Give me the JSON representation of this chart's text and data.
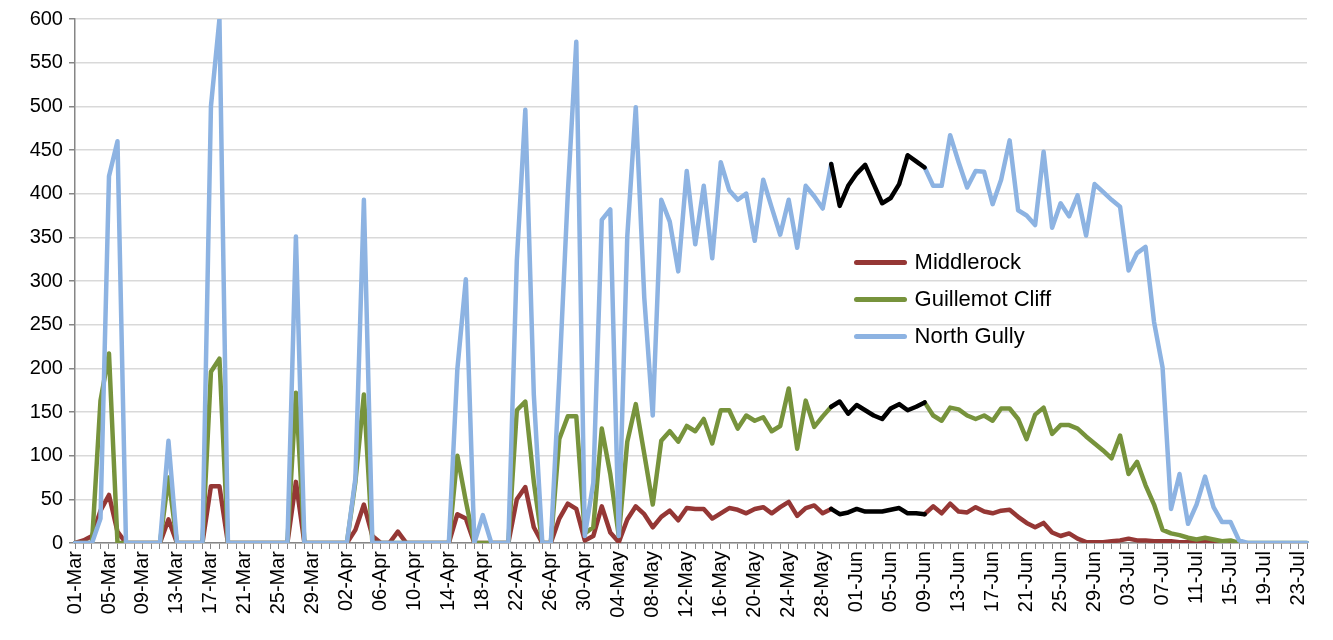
{
  "chart_data": {
    "type": "line",
    "categories": [
      "01-Mar",
      null,
      null,
      null,
      "05-Mar",
      null,
      null,
      null,
      "09-Mar",
      null,
      null,
      null,
      "13-Mar",
      null,
      null,
      null,
      "17-Mar",
      null,
      null,
      null,
      "21-Mar",
      null,
      null,
      null,
      "25-Mar",
      null,
      null,
      null,
      "29-Mar",
      null,
      null,
      null,
      "02-Apr",
      null,
      null,
      null,
      "06-Apr",
      null,
      null,
      null,
      "10-Apr",
      null,
      null,
      null,
      "14-Apr",
      null,
      null,
      null,
      "18-Apr",
      null,
      null,
      null,
      "22-Apr",
      null,
      null,
      null,
      "26-Apr",
      null,
      null,
      null,
      "30-Apr",
      null,
      null,
      null,
      "04-May",
      null,
      null,
      null,
      "08-May",
      null,
      null,
      null,
      "12-May",
      null,
      null,
      null,
      "16-May",
      null,
      null,
      null,
      "20-May",
      null,
      null,
      null,
      "24-May",
      null,
      null,
      null,
      "28-May",
      null,
      null,
      null,
      "01-Jun",
      null,
      null,
      null,
      "05-Jun",
      null,
      null,
      null,
      "09-Jun",
      null,
      null,
      null,
      "13-Jun",
      null,
      null,
      null,
      "17-Jun",
      null,
      null,
      null,
      "21-Jun",
      null,
      null,
      null,
      "25-Jun",
      null,
      null,
      null,
      "29-Jun",
      null,
      null,
      null,
      "03-Jul",
      null,
      null,
      null,
      "07-Jul",
      null,
      null,
      null,
      "11-Jul",
      null,
      null,
      null,
      "15-Jul",
      null,
      null,
      null,
      "19-Jul",
      null,
      null,
      null,
      "23-Jul",
      null
    ],
    "series": [
      {
        "name": "Middlerock",
        "color": "#953735",
        "values": [
          0,
          3,
          8,
          37,
          55,
          13,
          0,
          0,
          0,
          0,
          0,
          27,
          0,
          0,
          0,
          0,
          65,
          65,
          0,
          0,
          0,
          0,
          0,
          0,
          0,
          0,
          70,
          0,
          0,
          0,
          0,
          0,
          0,
          15,
          44,
          8,
          0,
          0,
          13,
          0,
          0,
          0,
          0,
          0,
          0,
          33,
          28,
          0,
          0,
          0,
          0,
          0,
          50,
          64,
          18,
          0,
          0,
          28,
          45,
          39,
          3,
          8,
          42,
          12,
          1,
          27,
          42,
          33,
          18,
          30,
          37,
          26,
          40,
          39,
          39,
          28,
          34,
          40,
          38,
          34,
          39,
          41,
          34,
          41,
          47,
          31,
          40,
          43,
          34,
          39,
          null,
          null,
          null,
          null,
          null,
          null,
          null,
          null,
          null,
          null,
          33,
          42,
          34,
          45,
          36,
          35,
          41,
          36,
          34,
          37,
          38,
          30,
          23,
          18,
          23,
          12,
          8,
          11,
          5,
          1,
          1,
          1,
          2,
          3,
          5,
          3,
          3,
          2,
          2,
          2,
          1,
          1,
          2,
          1,
          1,
          0,
          0,
          null,
          null,
          null,
          null,
          null,
          null,
          null,
          null,
          null
        ]
      },
      {
        "name": "Guillemot Cliff",
        "color": "#77933c",
        "values": [
          0,
          0,
          0,
          163,
          217,
          0,
          0,
          0,
          0,
          0,
          0,
          75,
          0,
          0,
          0,
          0,
          196,
          211,
          0,
          0,
          0,
          0,
          0,
          0,
          0,
          0,
          172,
          0,
          0,
          0,
          0,
          0,
          0,
          70,
          170,
          0,
          0,
          0,
          0,
          0,
          0,
          0,
          0,
          0,
          0,
          100,
          48,
          0,
          0,
          0,
          0,
          0,
          152,
          162,
          70,
          0,
          0,
          119,
          145,
          145,
          11,
          18,
          131,
          79,
          8,
          116,
          159,
          102,
          44,
          117,
          128,
          116,
          134,
          128,
          142,
          114,
          152,
          152,
          131,
          146,
          140,
          144,
          128,
          134,
          177,
          108,
          163,
          133,
          145,
          156,
          null,
          null,
          null,
          null,
          null,
          null,
          null,
          null,
          null,
          null,
          161,
          146,
          140,
          155,
          153,
          146,
          142,
          146,
          140,
          154,
          154,
          142,
          119,
          147,
          155,
          125,
          135,
          135,
          131,
          122,
          114,
          106,
          97,
          123,
          79,
          93,
          66,
          44,
          15,
          11,
          9,
          6,
          4,
          6,
          4,
          2,
          3,
          0,
          0,
          0,
          0,
          0,
          0,
          0,
          0,
          0
        ]
      },
      {
        "name": "North Gully",
        "color": "#8db3e2",
        "values": [
          0,
          0,
          0,
          28,
          420,
          460,
          0,
          0,
          0,
          0,
          0,
          117,
          0,
          0,
          0,
          0,
          500,
          600,
          0,
          0,
          0,
          0,
          0,
          0,
          0,
          0,
          351,
          0,
          0,
          0,
          0,
          0,
          0,
          74,
          393,
          0,
          0,
          0,
          0,
          0,
          0,
          0,
          0,
          0,
          0,
          199,
          302,
          0,
          32,
          0,
          0,
          0,
          323,
          496,
          170,
          0,
          0,
          190,
          400,
          574,
          8,
          69,
          370,
          382,
          8,
          351,
          499,
          281,
          146,
          393,
          368,
          311,
          426,
          342,
          409,
          326,
          436,
          404,
          393,
          400,
          346,
          416,
          384,
          353,
          393,
          338,
          409,
          397,
          383,
          434,
          null,
          null,
          null,
          null,
          null,
          null,
          null,
          null,
          null,
          null,
          430,
          409,
          409,
          467,
          436,
          407,
          426,
          425,
          388,
          416,
          461,
          381,
          375,
          364,
          448,
          361,
          389,
          374,
          398,
          352,
          411,
          402,
          393,
          385,
          312,
          332,
          339,
          253,
          201,
          39,
          79,
          22,
          44,
          76,
          41,
          24,
          24,
          3,
          0,
          0,
          0,
          0,
          0,
          0,
          0,
          0
        ]
      },
      {
        "color": "#000000",
        "values": [
          null,
          null,
          null,
          null,
          null,
          null,
          null,
          null,
          null,
          null,
          null,
          null,
          null,
          null,
          null,
          null,
          null,
          null,
          null,
          null,
          null,
          null,
          null,
          null,
          null,
          null,
          null,
          null,
          null,
          null,
          null,
          null,
          null,
          null,
          null,
          null,
          null,
          null,
          null,
          null,
          null,
          null,
          null,
          null,
          null,
          null,
          null,
          null,
          null,
          null,
          null,
          null,
          null,
          null,
          null,
          null,
          null,
          null,
          null,
          null,
          null,
          null,
          null,
          null,
          null,
          null,
          null,
          null,
          null,
          null,
          null,
          null,
          null,
          null,
          null,
          null,
          null,
          null,
          null,
          null,
          null,
          null,
          null,
          null,
          null,
          null,
          null,
          null,
          null,
          39,
          33,
          35,
          39,
          36,
          36,
          36,
          38,
          40,
          34,
          34,
          33,
          null,
          null,
          null,
          null,
          null,
          null,
          null,
          null,
          null,
          null,
          null,
          null,
          null,
          null,
          null,
          null,
          null,
          null,
          null,
          null,
          null,
          null,
          null,
          null,
          null,
          null,
          null,
          null,
          null,
          null,
          null,
          null,
          null,
          null,
          null,
          null,
          null,
          null,
          null,
          null,
          null,
          null,
          null,
          null,
          null
        ]
      },
      {
        "color": "#000000",
        "values": [
          null,
          null,
          null,
          null,
          null,
          null,
          null,
          null,
          null,
          null,
          null,
          null,
          null,
          null,
          null,
          null,
          null,
          null,
          null,
          null,
          null,
          null,
          null,
          null,
          null,
          null,
          null,
          null,
          null,
          null,
          null,
          null,
          null,
          null,
          null,
          null,
          null,
          null,
          null,
          null,
          null,
          null,
          null,
          null,
          null,
          null,
          null,
          null,
          null,
          null,
          null,
          null,
          null,
          null,
          null,
          null,
          null,
          null,
          null,
          null,
          null,
          null,
          null,
          null,
          null,
          null,
          null,
          null,
          null,
          null,
          null,
          null,
          null,
          null,
          null,
          null,
          null,
          null,
          null,
          null,
          null,
          null,
          null,
          null,
          null,
          null,
          null,
          null,
          null,
          156,
          162,
          148,
          158,
          152,
          146,
          142,
          154,
          159,
          152,
          156,
          161,
          null,
          null,
          null,
          null,
          null,
          null,
          null,
          null,
          null,
          null,
          null,
          null,
          null,
          null,
          null,
          null,
          null,
          null,
          null,
          null,
          null,
          null,
          null,
          null,
          null,
          null,
          null,
          null,
          null,
          null,
          null,
          null,
          null,
          null,
          null,
          null,
          null,
          null,
          null,
          null,
          null,
          null,
          null,
          null,
          null
        ]
      },
      {
        "color": "#000000",
        "values": [
          null,
          null,
          null,
          null,
          null,
          null,
          null,
          null,
          null,
          null,
          null,
          null,
          null,
          null,
          null,
          null,
          null,
          null,
          null,
          null,
          null,
          null,
          null,
          null,
          null,
          null,
          null,
          null,
          null,
          null,
          null,
          null,
          null,
          null,
          null,
          null,
          null,
          null,
          null,
          null,
          null,
          null,
          null,
          null,
          null,
          null,
          null,
          null,
          null,
          null,
          null,
          null,
          null,
          null,
          null,
          null,
          null,
          null,
          null,
          null,
          null,
          null,
          null,
          null,
          null,
          null,
          null,
          null,
          null,
          null,
          null,
          null,
          null,
          null,
          null,
          null,
          null,
          null,
          null,
          null,
          null,
          null,
          null,
          null,
          null,
          null,
          null,
          null,
          null,
          434,
          386,
          409,
          423,
          433,
          411,
          389,
          395,
          411,
          444,
          437,
          430,
          null,
          null,
          null,
          null,
          null,
          null,
          null,
          null,
          null,
          null,
          null,
          null,
          null,
          null,
          null,
          null,
          null,
          null,
          null,
          null,
          null,
          null,
          null,
          null,
          null,
          null,
          null,
          null,
          null,
          null,
          null,
          null,
          null,
          null,
          null,
          null,
          null,
          null,
          null,
          null,
          null,
          null,
          null,
          null,
          null
        ]
      }
    ],
    "ylim": [
      0,
      600
    ],
    "yticks": [
      0,
      50,
      100,
      150,
      200,
      250,
      300,
      350,
      400,
      450,
      500,
      550,
      600
    ],
    "grid": "y",
    "legend": "right"
  }
}
